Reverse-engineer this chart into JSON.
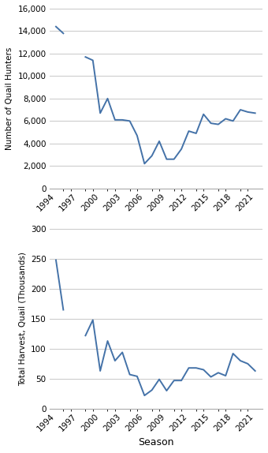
{
  "hunters_seasons": [
    1994,
    1995,
    null,
    null,
    1998,
    1999,
    2000,
    2001,
    2002,
    2003,
    2004,
    2005,
    2006,
    2007,
    2008,
    2009,
    2010,
    2011,
    2012,
    2013,
    2014,
    2015,
    2016,
    2017,
    2018,
    2019,
    2020,
    2021
  ],
  "hunters_values": [
    14400,
    13800,
    null,
    null,
    11700,
    11400,
    6700,
    8000,
    6100,
    6100,
    6000,
    4700,
    2200,
    2900,
    4200,
    2600,
    2600,
    3500,
    5100,
    4900,
    6600,
    5800,
    5700,
    6200,
    6000,
    7000,
    6800,
    6700
  ],
  "harvest_seasons": [
    1994,
    1995,
    null,
    null,
    1998,
    1999,
    2000,
    2001,
    2002,
    2003,
    2004,
    2005,
    2006,
    2007,
    2008,
    2009,
    2010,
    2011,
    2012,
    2013,
    2014,
    2015,
    2016,
    2017,
    2018,
    2019,
    2020,
    2021
  ],
  "harvest_values": [
    248,
    165,
    null,
    null,
    122,
    148,
    63,
    113,
    80,
    94,
    57,
    54,
    22,
    31,
    49,
    30,
    47,
    47,
    68,
    68,
    65,
    53,
    60,
    55,
    92,
    80,
    75,
    63
  ],
  "all_seasons": [
    1994,
    1995,
    1996,
    1997,
    1998,
    1999,
    2000,
    2001,
    2002,
    2003,
    2004,
    2005,
    2006,
    2007,
    2008,
    2009,
    2010,
    2011,
    2012,
    2013,
    2014,
    2015,
    2016,
    2017,
    2018,
    2019,
    2020,
    2021
  ],
  "line_color": "#4472a8",
  "hunters_ylim": [
    0,
    16000
  ],
  "hunters_yticks": [
    0,
    2000,
    4000,
    6000,
    8000,
    10000,
    12000,
    14000,
    16000
  ],
  "harvest_ylim": [
    0,
    300
  ],
  "harvest_yticks": [
    0,
    50,
    100,
    150,
    200,
    250,
    300
  ],
  "xtick_major_labels": [
    1994,
    1997,
    2000,
    2003,
    2006,
    2009,
    2012,
    2015,
    2018,
    2021
  ],
  "hunters_ylabel": "Number of Quail Hunters",
  "harvest_ylabel": "Total Harvest, Quail (Thousands)",
  "xlabel": "Season",
  "grid_color": "#c8c8c8",
  "line_width": 1.4
}
